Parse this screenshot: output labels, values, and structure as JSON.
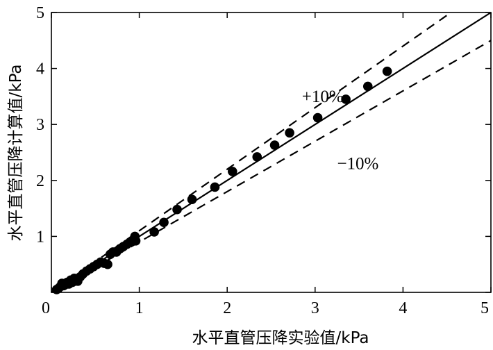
{
  "chart_data": {
    "type": "scatter",
    "xlabel": "水平直管压降实验值/kPa",
    "ylabel": "水平直管压降计算值/kPa",
    "xlim": [
      0,
      5
    ],
    "ylim": [
      0,
      5
    ],
    "x_ticks": [
      0,
      1,
      2,
      3,
      4,
      5
    ],
    "y_ticks": [
      0,
      1,
      2,
      3,
      4,
      5
    ],
    "x_tick_labels": [
      "0",
      "1",
      "2",
      "3",
      "4",
      "5"
    ],
    "y_tick_labels": [
      "",
      "1",
      "2",
      "3",
      "4",
      "5"
    ],
    "grid": false,
    "reference_lines": [
      {
        "slope": 1.0,
        "style": "solid"
      },
      {
        "slope": 1.1,
        "style": "dashed"
      },
      {
        "slope": 0.9,
        "style": "dashed"
      }
    ],
    "annotations": [
      {
        "text": "+10%",
        "x": 2.85,
        "y": 3.4
      },
      {
        "text": "−10%",
        "x": 3.25,
        "y": 2.2
      }
    ],
    "series": [
      {
        "points": [
          [
            0.06,
            0.05
          ],
          [
            0.08,
            0.07
          ],
          [
            0.1,
            0.1
          ],
          [
            0.12,
            0.16
          ],
          [
            0.14,
            0.12
          ],
          [
            0.16,
            0.14
          ],
          [
            0.18,
            0.18
          ],
          [
            0.2,
            0.15
          ],
          [
            0.22,
            0.22
          ],
          [
            0.24,
            0.18
          ],
          [
            0.26,
            0.25
          ],
          [
            0.28,
            0.22
          ],
          [
            0.3,
            0.2
          ],
          [
            0.33,
            0.28
          ],
          [
            0.36,
            0.33
          ],
          [
            0.4,
            0.38
          ],
          [
            0.44,
            0.42
          ],
          [
            0.48,
            0.46
          ],
          [
            0.52,
            0.5
          ],
          [
            0.56,
            0.54
          ],
          [
            0.6,
            0.52
          ],
          [
            0.64,
            0.5
          ],
          [
            0.67,
            0.68
          ],
          [
            0.7,
            0.72
          ],
          [
            0.74,
            0.72
          ],
          [
            0.78,
            0.78
          ],
          [
            0.82,
            0.82
          ],
          [
            0.86,
            0.86
          ],
          [
            0.9,
            0.9
          ],
          [
            0.94,
            0.95
          ],
          [
            0.96,
            0.92
          ],
          [
            0.95,
            1.0
          ],
          [
            1.17,
            1.08
          ],
          [
            1.28,
            1.25
          ],
          [
            1.43,
            1.48
          ],
          [
            1.6,
            1.66
          ],
          [
            1.86,
            1.88
          ],
          [
            2.06,
            2.16
          ],
          [
            2.34,
            2.42
          ],
          [
            2.54,
            2.63
          ],
          [
            2.71,
            2.85
          ],
          [
            3.03,
            3.12
          ],
          [
            3.35,
            3.45
          ],
          [
            3.6,
            3.68
          ],
          [
            3.82,
            3.95
          ]
        ]
      }
    ]
  }
}
